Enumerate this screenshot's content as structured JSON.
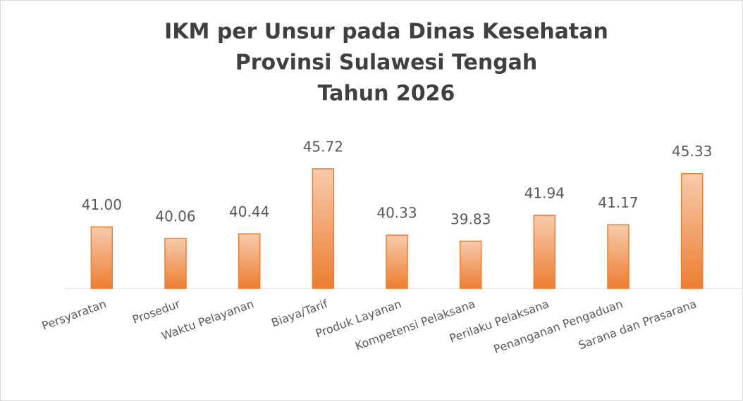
{
  "chart_data": {
    "type": "bar",
    "title": [
      "IKM per Unsur pada Dinas Kesehatan",
      "Provinsi Sulawesi Tengah",
      "Tahun 2026"
    ],
    "categories": [
      "Persyaratan",
      "Prosedur",
      "Waktu Pelayanan",
      "Biaya/Tarif",
      "Produk Layanan",
      "Kompetensi Pelaksana",
      "Perilaku Pelaksana",
      "Penanganan Pengaduan",
      "Sarana dan Prasarana"
    ],
    "values": [
      41.0,
      40.06,
      40.44,
      45.72,
      40.33,
      39.83,
      41.94,
      41.17,
      45.33
    ],
    "value_labels": [
      "41.00",
      "40.06",
      "40.44",
      "45.72",
      "40.33",
      "39.83",
      "41.94",
      "41.17",
      "45.33"
    ],
    "color": "#ed7d31",
    "ylim": [
      36,
      47
    ],
    "grid": false
  }
}
